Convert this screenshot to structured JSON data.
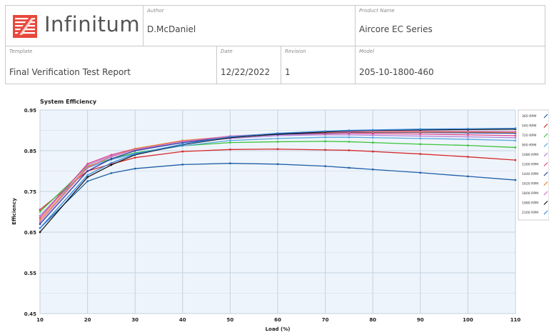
{
  "header": {
    "logo_text": "Infinitum",
    "author_caption": "Author",
    "author": "D.McDaniel",
    "product_caption": "Product Name",
    "product": "Aircore EC Series",
    "template_caption": "Template",
    "template": "Final Verification Test Report",
    "date_caption": "Date",
    "date": "12/22/2022",
    "revision_caption": "Revision",
    "revision": "1",
    "model_caption": "Model",
    "model": "205-10-1800-460"
  },
  "chart_data": {
    "type": "line",
    "title": "System Efficiency",
    "xlabel": "Load (%)",
    "ylabel": "Efficiency",
    "xlim": [
      10,
      110
    ],
    "ylim": [
      0.45,
      0.95
    ],
    "xticks": [
      10,
      20,
      30,
      40,
      50,
      60,
      70,
      80,
      90,
      100,
      110
    ],
    "yticks": [
      0.45,
      0.55,
      0.65,
      0.75,
      0.85,
      0.95
    ],
    "grid": true,
    "legend_position": "right",
    "x": [
      10,
      20,
      25,
      30,
      40,
      50,
      60,
      70,
      75,
      80,
      90,
      100,
      110
    ],
    "series": [
      {
        "name": "360 RPM",
        "color": "#1f5fa8",
        "values": [
          0.66,
          0.775,
          0.795,
          0.806,
          0.816,
          0.819,
          0.817,
          0.812,
          0.808,
          0.804,
          0.796,
          0.787,
          0.778
        ]
      },
      {
        "name": "540 RPM",
        "color": "#d42a2a",
        "values": [
          0.705,
          0.8,
          0.817,
          0.833,
          0.848,
          0.853,
          0.854,
          0.852,
          0.851,
          0.848,
          0.842,
          0.835,
          0.827
        ]
      },
      {
        "name": "720 RPM",
        "color": "#3cc33c",
        "values": [
          0.7,
          0.812,
          0.83,
          0.845,
          0.862,
          0.87,
          0.872,
          0.873,
          0.872,
          0.87,
          0.866,
          0.863,
          0.858
        ]
      },
      {
        "name": "900 RPM",
        "color": "#5aa8e0",
        "values": [
          0.69,
          0.808,
          0.828,
          0.843,
          0.862,
          0.875,
          0.88,
          0.883,
          0.883,
          0.882,
          0.88,
          0.878,
          0.875
        ]
      },
      {
        "name": "1080 RPM",
        "color": "#b57fd6",
        "values": [
          0.69,
          0.815,
          0.837,
          0.852,
          0.87,
          0.88,
          0.887,
          0.889,
          0.889,
          0.888,
          0.886,
          0.884,
          0.882
        ]
      },
      {
        "name": "1260 RPM",
        "color": "#e0478c",
        "values": [
          0.685,
          0.818,
          0.84,
          0.855,
          0.873,
          0.884,
          0.89,
          0.892,
          0.893,
          0.892,
          0.891,
          0.889,
          0.887
        ]
      },
      {
        "name": "1440 RPM",
        "color": "#2a3f9e",
        "values": [
          0.67,
          0.8,
          0.83,
          0.85,
          0.87,
          0.883,
          0.89,
          0.894,
          0.895,
          0.895,
          0.895,
          0.894,
          0.893
        ]
      },
      {
        "name": "1620 RPM",
        "color": "#e8822a",
        "values": [
          0.68,
          0.81,
          0.835,
          0.855,
          0.875,
          0.885,
          0.892,
          0.895,
          0.896,
          0.896,
          0.896,
          0.896,
          0.895
        ]
      },
      {
        "name": "1800 RPM",
        "color": "#d070c0",
        "values": [
          0.675,
          0.808,
          0.835,
          0.853,
          0.873,
          0.886,
          0.892,
          0.896,
          0.897,
          0.898,
          0.898,
          0.898,
          0.897
        ]
      },
      {
        "name": "1980 RPM",
        "color": "#151515",
        "values": [
          0.65,
          0.785,
          0.815,
          0.84,
          0.865,
          0.882,
          0.891,
          0.896,
          0.899,
          0.9,
          0.901,
          0.902,
          0.903
        ]
      },
      {
        "name": "2160 RPM",
        "color": "#3388dd",
        "values": [
          0.66,
          0.79,
          0.82,
          0.842,
          0.866,
          0.884,
          0.893,
          0.898,
          0.9,
          0.901,
          0.903,
          0.904,
          0.905
        ]
      }
    ]
  }
}
